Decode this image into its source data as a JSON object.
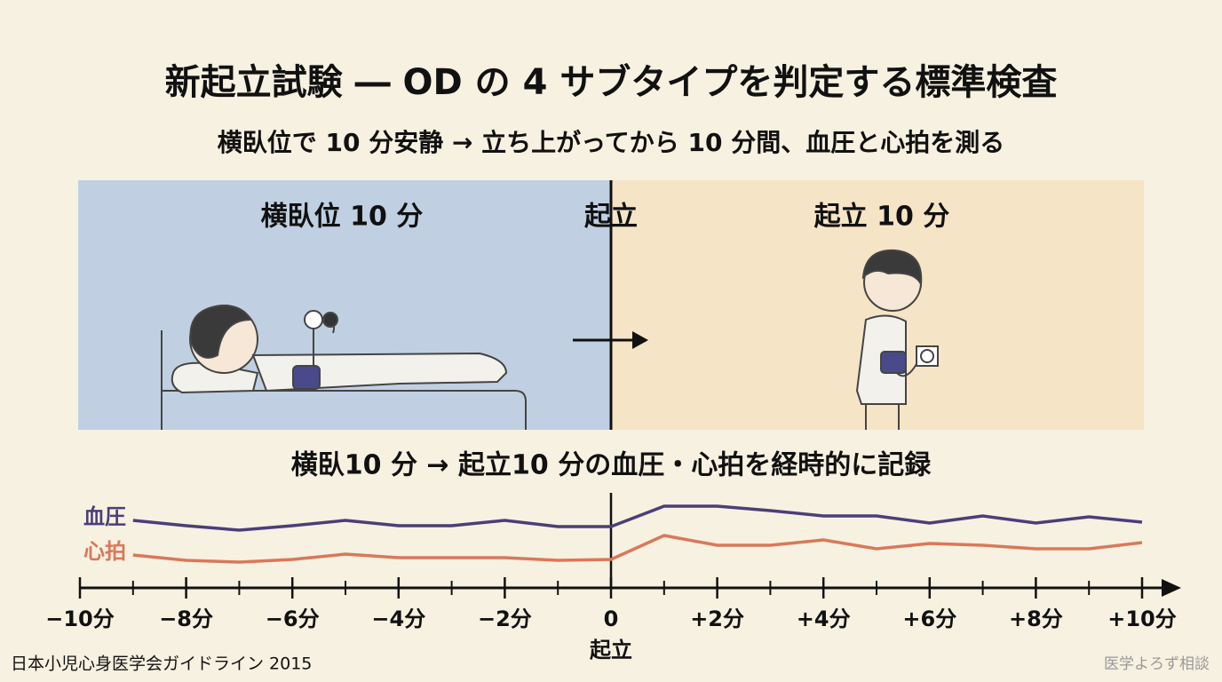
{
  "header": {
    "title": "新起立試験 ― OD の 4 サブタイプを判定する標準検査",
    "subtitle": "横臥位で 10 分安静 → 立ち上がってから 10 分間、血圧と心拍を測る"
  },
  "panels": {
    "left_label": "横臥位 10 分",
    "center_label": "起立",
    "right_label": "起立 10 分"
  },
  "chart_data": {
    "type": "line",
    "title": "横臥10 分 → 起立10 分の血圧・心拍を経時的に記録",
    "x": [
      -9,
      -8,
      -7,
      -6,
      -5,
      -4,
      -3,
      -2,
      -1,
      0,
      1,
      2,
      3,
      4,
      5,
      6,
      7,
      8,
      9,
      10
    ],
    "series": [
      {
        "name": "血圧",
        "color": "#4a3f78",
        "values": [
          114,
          108,
          103,
          108,
          114,
          108,
          108,
          114,
          107,
          107,
          130,
          130,
          125,
          119,
          119,
          111,
          119,
          111,
          118,
          112
        ]
      },
      {
        "name": "心拍",
        "color": "#d9785a",
        "values": [
          75,
          69,
          67,
          70,
          76,
          72,
          72,
          72,
          69,
          70,
          97,
          86,
          86,
          92,
          82,
          88,
          86,
          82,
          82,
          89
        ]
      }
    ],
    "xlim": [
      -10,
      10
    ],
    "ylim": [
      0,
      140
    ],
    "xticks": [
      {
        "value": -10,
        "label": "−10分"
      },
      {
        "value": -8,
        "label": "−8分"
      },
      {
        "value": -6,
        "label": "−6分"
      },
      {
        "value": -4,
        "label": "−4分"
      },
      {
        "value": -2,
        "label": "−2分"
      },
      0,
      {
        "value": 2,
        "label": "+2分"
      },
      {
        "value": 4,
        "label": "+4分"
      },
      {
        "value": 6,
        "label": "+6分"
      },
      {
        "value": 8,
        "label": "+8分"
      },
      {
        "value": 10,
        "label": "+10分"
      }
    ],
    "x_minor_ticks": [
      -9,
      -7,
      -5,
      -3,
      -1,
      1,
      3,
      5,
      7,
      9
    ],
    "x_marker_label": "起立"
  },
  "footer": {
    "source": "日本小児心身医学会ガイドライン 2015",
    "brand": "医学よろず相談"
  }
}
